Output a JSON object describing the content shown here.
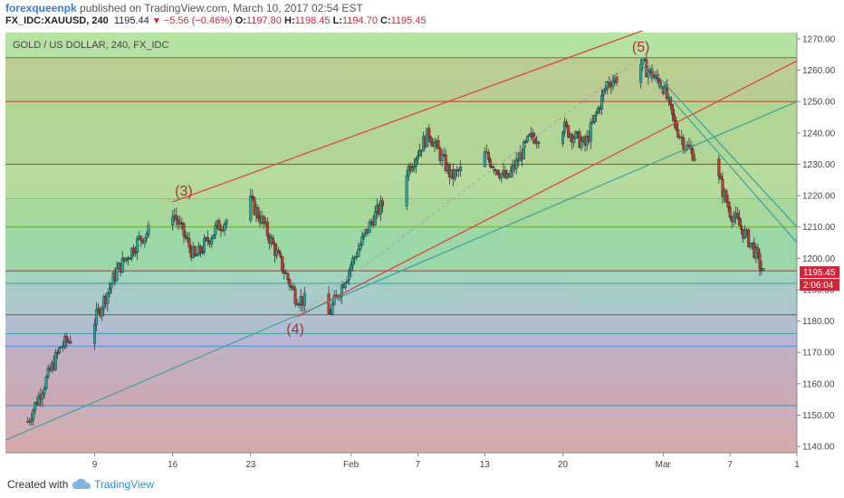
{
  "header": {
    "author": "forexqueenpk",
    "published_text": "published on TradingView.com, March 10, 2017 02:54 EST",
    "symbol": "FX_IDC:XAUUSD, 240",
    "last": "1195.44",
    "change": "−5.56 (−0.46%)",
    "open_label": "O:",
    "open": "1197.80",
    "high_label": "H:",
    "high": "1198.45",
    "low_label": "L:",
    "low": "1194.70",
    "close_label": "C:",
    "close": "1195.45"
  },
  "footer": {
    "created_with": "Created with",
    "brand": "TradingView"
  },
  "chart_data": {
    "type": "candlestick",
    "title": "GOLD / US DOLLAR, 240, FX_IDC",
    "x_tick_labels": [
      "9",
      "16",
      "23",
      "Feb",
      "7",
      "13",
      "20",
      "Mar",
      "7",
      "1"
    ],
    "y_ticks": [
      1140,
      1150,
      1160,
      1170,
      1180,
      1190,
      1200,
      1210,
      1220,
      1230,
      1240,
      1250,
      1260,
      1270
    ],
    "ylim": [
      1138,
      1272
    ],
    "last_price": 1195.45,
    "countdown": "2:06:04",
    "series": [
      {
        "x": [
          "2017-01-03",
          "2017-01-06",
          "2017-01-09",
          "2017-01-11",
          "2017-01-13",
          "2017-01-16",
          "2017-01-18",
          "2017-01-20",
          "2017-01-23",
          "2017-01-24",
          "2017-01-27",
          "2017-01-30",
          "2017-02-01",
          "2017-02-03",
          "2017-02-06",
          "2017-02-08",
          "2017-02-10",
          "2017-02-13",
          "2017-02-15",
          "2017-02-17",
          "2017-02-20",
          "2017-02-22",
          "2017-02-24",
          "2017-02-27",
          "2017-03-01",
          "2017-03-02",
          "2017-03-03",
          "2017-03-06",
          "2017-03-07",
          "2017-03-09",
          "2017-03-10"
        ],
        "close": [
          1148,
          1172,
          1180,
          1196,
          1206,
          1215,
          1200,
          1210,
          1218,
          1212,
          1188,
          1182,
          1198,
          1213,
          1228,
          1240,
          1226,
          1233,
          1225,
          1238,
          1242,
          1236,
          1256,
          1262,
          1255,
          1243,
          1236,
          1225,
          1215,
          1204,
          1195
        ]
      }
    ],
    "horizontal_lines": [
      {
        "value": 1264,
        "color": "#8a6a3a"
      },
      {
        "value": 1250,
        "color": "#c0392b"
      },
      {
        "value": 1230,
        "color": "#c0392b"
      },
      {
        "value": 1219,
        "color": "#8fbf6a"
      },
      {
        "value": 1210,
        "color": "#6aab3d"
      },
      {
        "value": 1196,
        "color": "#d0263a"
      },
      {
        "value": 1192,
        "color": "#3aa0a0"
      },
      {
        "value": 1182,
        "color": "#c0392b"
      },
      {
        "value": 1176,
        "color": "#3aa0a0"
      },
      {
        "value": 1172,
        "color": "#3a8fd5"
      },
      {
        "value": 1153,
        "color": "#3a8fd5"
      }
    ],
    "trendlines": [
      {
        "from": [
          "2017-01-16",
          1218
        ],
        "to": [
          "2017-03-01",
          1275
        ],
        "color": "#e03a3a"
      },
      {
        "from": [
          "2017-01-27",
          1181
        ],
        "to": [
          "2017-03-13",
          1263
        ],
        "color": "#e03a3a"
      },
      {
        "from": [
          "2017-01-01",
          1142
        ],
        "to": [
          "2017-03-13",
          1250
        ],
        "color": "#3aa0a0"
      },
      {
        "from": [
          "2017-02-27",
          1264
        ],
        "to": [
          "2017-03-13",
          1210
        ],
        "color": "#3aa0a0"
      },
      {
        "from": [
          "2017-02-27",
          1262
        ],
        "to": [
          "2017-03-13",
          1205
        ],
        "color": "#3aa0a0"
      },
      {
        "from": [
          "2017-01-27",
          1181
        ],
        "to": [
          "2017-02-27",
          1264
        ],
        "color": "#aaaaaa"
      }
    ],
    "annotations": [
      {
        "text": "(3)",
        "x": "2017-01-17",
        "y": 1220,
        "color": "#b03030"
      },
      {
        "text": "(4)",
        "x": "2017-01-27",
        "y": 1176,
        "color": "#b03030"
      },
      {
        "text": "(5)",
        "x": "2017-02-27",
        "y": 1266,
        "color": "#b03030"
      }
    ],
    "colors": {
      "up": "#26a69a",
      "down": "#c0392b",
      "accent": "#d0263a",
      "brand": "#2f8dd1"
    }
  }
}
